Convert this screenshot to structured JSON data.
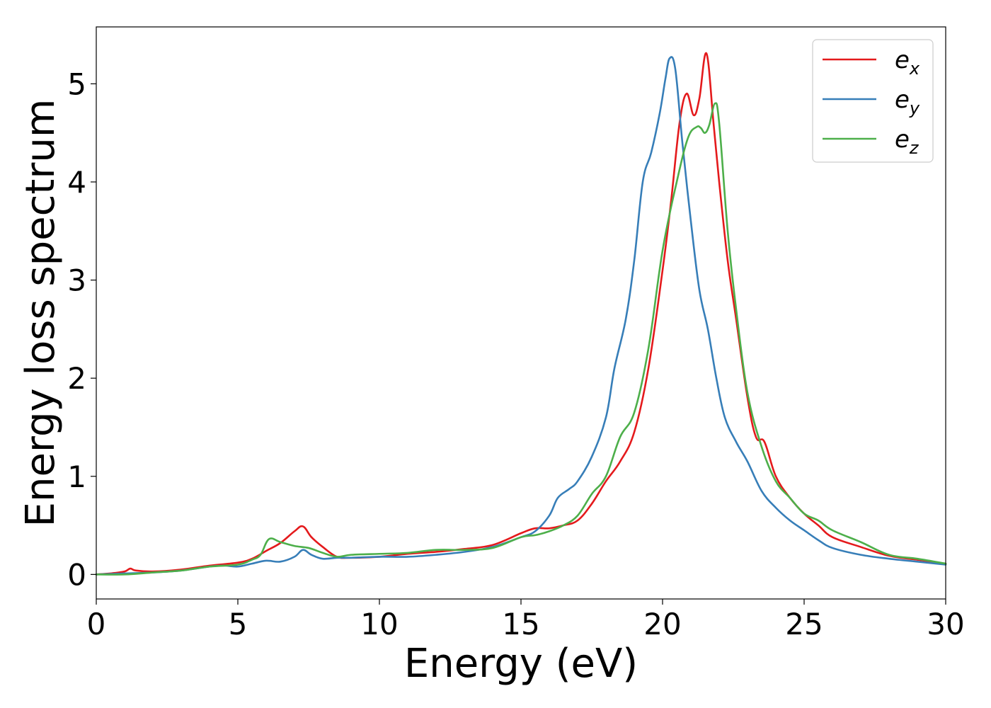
{
  "chart_data": {
    "type": "line",
    "title": "",
    "xlabel": "Energy (eV)",
    "ylabel": "Energy loss spectrum",
    "xlim": [
      0,
      30
    ],
    "ylim": [
      -0.25,
      5.58
    ],
    "xticks": [
      0,
      5,
      10,
      15,
      20,
      25,
      30
    ],
    "yticks": [
      0,
      1,
      2,
      3,
      4,
      5
    ],
    "grid": false,
    "legend_position": "top-right",
    "series": [
      {
        "name": "e_x",
        "label_base": "e",
        "label_sub": "x",
        "color": "#e41a1c",
        "x": [
          0,
          0.5,
          1.0,
          1.2,
          1.4,
          2,
          3,
          4,
          5,
          5.5,
          6,
          6.5,
          7,
          7.3,
          7.6,
          8,
          8.5,
          9,
          10,
          11,
          12,
          13,
          14,
          15,
          15.5,
          16,
          16.5,
          17,
          17.5,
          18,
          18.5,
          19,
          19.5,
          20,
          20.3,
          20.6,
          20.85,
          21.1,
          21.3,
          21.55,
          21.8,
          22.0,
          22.3,
          22.6,
          23.0,
          23.3,
          23.6,
          24,
          24.5,
          25,
          25.5,
          26,
          27,
          28,
          29,
          30
        ],
        "y": [
          0.0,
          0.01,
          0.03,
          0.06,
          0.04,
          0.03,
          0.05,
          0.09,
          0.12,
          0.16,
          0.24,
          0.32,
          0.44,
          0.49,
          0.38,
          0.28,
          0.18,
          0.17,
          0.18,
          0.21,
          0.23,
          0.26,
          0.3,
          0.42,
          0.47,
          0.47,
          0.5,
          0.55,
          0.72,
          0.95,
          1.15,
          1.45,
          2.1,
          3.1,
          3.8,
          4.6,
          4.9,
          4.68,
          4.85,
          5.31,
          4.6,
          4.0,
          3.2,
          2.6,
          1.8,
          1.4,
          1.35,
          1.0,
          0.78,
          0.62,
          0.5,
          0.38,
          0.28,
          0.19,
          0.15,
          0.11
        ]
      },
      {
        "name": "e_y",
        "label_base": "e",
        "label_sub": "y",
        "color": "#377eb8",
        "x": [
          0,
          1,
          2,
          3,
          4,
          4.5,
          5,
          5.5,
          6,
          6.5,
          7,
          7.3,
          7.6,
          8,
          8.5,
          9,
          10,
          11,
          12,
          13,
          14,
          15,
          15.5,
          16,
          16.3,
          16.7,
          17,
          17.5,
          18,
          18.3,
          18.7,
          19,
          19.3,
          19.6,
          19.9,
          20.1,
          20.25,
          20.45,
          20.7,
          21,
          21.3,
          21.6,
          21.9,
          22.2,
          22.6,
          23,
          23.5,
          24,
          24.5,
          25,
          25.5,
          26,
          27,
          28,
          29,
          30
        ],
        "y": [
          0.0,
          0.01,
          0.02,
          0.04,
          0.08,
          0.09,
          0.08,
          0.11,
          0.14,
          0.13,
          0.18,
          0.25,
          0.2,
          0.16,
          0.17,
          0.17,
          0.18,
          0.18,
          0.2,
          0.23,
          0.28,
          0.38,
          0.44,
          0.6,
          0.78,
          0.87,
          0.95,
          1.2,
          1.6,
          2.1,
          2.6,
          3.2,
          4.0,
          4.3,
          4.7,
          5.05,
          5.26,
          5.15,
          4.4,
          3.6,
          2.9,
          2.5,
          2.0,
          1.6,
          1.35,
          1.15,
          0.85,
          0.68,
          0.55,
          0.45,
          0.35,
          0.27,
          0.2,
          0.16,
          0.13,
          0.1
        ]
      },
      {
        "name": "e_z",
        "label_base": "e",
        "label_sub": "z",
        "color": "#4daf4a",
        "x": [
          0,
          1,
          2,
          3,
          4,
          5,
          5.5,
          5.8,
          6.1,
          6.5,
          7,
          7.5,
          8,
          8.5,
          9,
          10,
          11,
          12,
          13,
          14,
          15,
          15.5,
          16,
          16.5,
          17,
          17.5,
          18,
          18.5,
          19,
          19.5,
          20,
          20.5,
          20.9,
          21.2,
          21.35,
          21.5,
          21.65,
          21.85,
          22.0,
          22.3,
          22.6,
          23,
          23.5,
          24,
          24.5,
          25,
          25.5,
          26,
          27,
          28,
          29,
          30
        ],
        "y": [
          0.0,
          0.0,
          0.02,
          0.04,
          0.08,
          0.1,
          0.15,
          0.2,
          0.36,
          0.33,
          0.29,
          0.27,
          0.22,
          0.18,
          0.2,
          0.21,
          0.22,
          0.25,
          0.25,
          0.27,
          0.38,
          0.4,
          0.44,
          0.5,
          0.6,
          0.82,
          1.0,
          1.4,
          1.65,
          2.3,
          3.3,
          4.0,
          4.45,
          4.56,
          4.55,
          4.5,
          4.58,
          4.8,
          4.6,
          3.5,
          2.7,
          1.85,
          1.3,
          0.95,
          0.78,
          0.62,
          0.55,
          0.45,
          0.33,
          0.2,
          0.16,
          0.11
        ]
      }
    ]
  }
}
